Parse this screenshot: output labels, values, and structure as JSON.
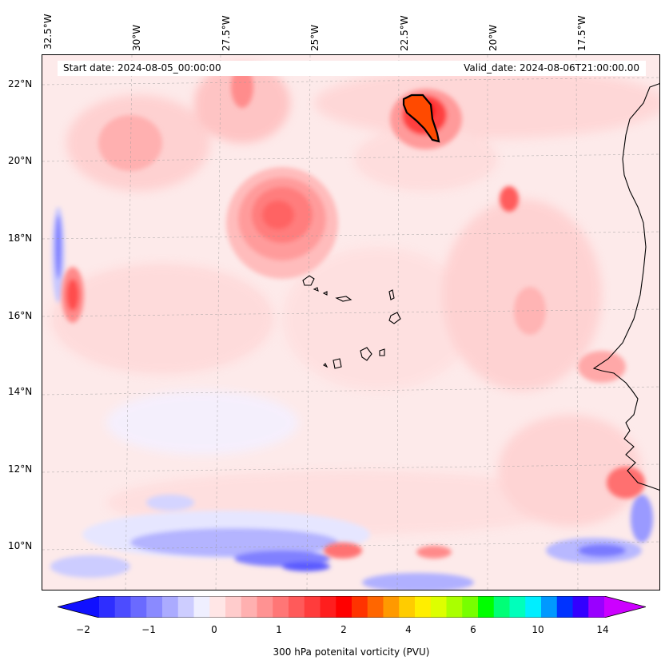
{
  "map": {
    "start_label": "Start date: 2024-08-05_00:00:00",
    "valid_label": "Valid_date: 2024-08-06T21:00:00.00",
    "longitudes": [
      "32.5°W",
      "30°W",
      "27.5°W",
      "25°W",
      "22.5°W",
      "20°W",
      "17.5°W"
    ],
    "latitudes": [
      "22°N",
      "20°N",
      "18°N",
      "16°N",
      "14°N",
      "12°N",
      "10°N"
    ],
    "colorbar_ticks": [
      "−2",
      "−1",
      "0",
      "1",
      "2",
      "4",
      "6",
      "10",
      "14"
    ],
    "colorbar_title": "300 hPa potenital vorticity (PVU)",
    "colors": {
      "levels": [
        "#1010ff",
        "#2e2eff",
        "#4c4cff",
        "#6a6aff",
        "#8a8aff",
        "#ababff",
        "#cdcdff",
        "#efefff",
        "#ffe6e6",
        "#ffcccc",
        "#ffb0b0",
        "#ff9292",
        "#ff7676",
        "#ff5a5a",
        "#ff3c3c",
        "#ff1e1e",
        "#ff0000",
        "#ff3300",
        "#ff6600",
        "#ff9900",
        "#ffcc00",
        "#ffee00",
        "#ddff00",
        "#aaff00",
        "#77ff00",
        "#00ff00",
        "#00ff77",
        "#00ffbb",
        "#00eeff",
        "#0099ff",
        "#0033ff",
        "#3300ff",
        "#9900ff",
        "#cc00ff"
      ]
    }
  }
}
